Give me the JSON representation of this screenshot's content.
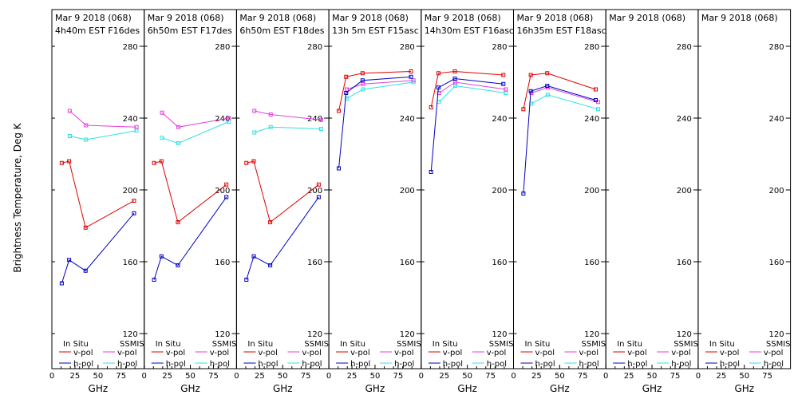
{
  "ylabel": "Brightness Temperature, Deg K",
  "xlabel": "GHz",
  "legend": {
    "insitu_title": "In Situ",
    "ssmis_title": "SSMIS",
    "vpol": "v-pol",
    "hpol": "h-pol"
  },
  "colors": {
    "insitu_v": "#e00000",
    "insitu_h": "#0000c0",
    "ssmis_v": "#e040e0",
    "ssmis_h": "#30e0e0"
  },
  "chart_data": {
    "type": "line",
    "xlim": [
      0,
      100
    ],
    "ylim": [
      110,
      290
    ],
    "yticks": [
      120,
      160,
      200,
      240,
      280
    ],
    "xticks": [
      0,
      25,
      50,
      75
    ],
    "panels": [
      {
        "title1": "Mar 9 2018 (068)",
        "title2": "4h40m EST F16des",
        "insitu_v": [
          [
            10.7,
            215
          ],
          [
            18.7,
            216
          ],
          [
            36.5,
            179
          ],
          [
            89,
            194
          ]
        ],
        "insitu_h": [
          [
            10.7,
            148
          ],
          [
            18.7,
            161
          ],
          [
            36.5,
            155
          ],
          [
            89,
            187
          ]
        ],
        "ssmis_v": [
          [
            19.35,
            244
          ],
          [
            37,
            236
          ],
          [
            91.655,
            235
          ]
        ],
        "ssmis_h": [
          [
            19.35,
            230
          ],
          [
            37,
            228
          ],
          [
            91.655,
            233
          ]
        ]
      },
      {
        "title1": "Mar 9 2018 (068)",
        "title2": "6h50m EST F17des",
        "insitu_v": [
          [
            10.7,
            215
          ],
          [
            18.7,
            216
          ],
          [
            36.5,
            182
          ],
          [
            89,
            203
          ]
        ],
        "insitu_h": [
          [
            10.7,
            150
          ],
          [
            18.7,
            163
          ],
          [
            36.5,
            158
          ],
          [
            89,
            196
          ]
        ],
        "ssmis_v": [
          [
            19.35,
            243
          ],
          [
            37,
            235
          ],
          [
            91.655,
            240
          ]
        ],
        "ssmis_h": [
          [
            19.35,
            229
          ],
          [
            37,
            226
          ],
          [
            91.655,
            238
          ]
        ]
      },
      {
        "title1": "Mar 9 2018 (068)",
        "title2": "6h50m EST F18des",
        "insitu_v": [
          [
            10.7,
            215
          ],
          [
            18.7,
            216
          ],
          [
            36.5,
            182
          ],
          [
            89,
            203
          ]
        ],
        "insitu_h": [
          [
            10.7,
            150
          ],
          [
            18.7,
            163
          ],
          [
            36.5,
            158
          ],
          [
            89,
            196
          ]
        ],
        "ssmis_v": [
          [
            19.35,
            244
          ],
          [
            37,
            242
          ],
          [
            91.655,
            239
          ]
        ],
        "ssmis_h": [
          [
            19.35,
            232
          ],
          [
            37,
            235
          ],
          [
            91.655,
            234
          ]
        ]
      },
      {
        "title1": "Mar 9 2018 (068)",
        "title2": "13h 5m EST F15asc",
        "insitu_v": [
          [
            10.7,
            244
          ],
          [
            18.7,
            263
          ],
          [
            36.5,
            265
          ],
          [
            89,
            266
          ]
        ],
        "insitu_h": [
          [
            10.7,
            212
          ],
          [
            18.7,
            254
          ],
          [
            36.5,
            261
          ],
          [
            89,
            263
          ]
        ],
        "ssmis_v": [
          [
            19.35,
            256
          ],
          [
            37,
            259
          ],
          [
            91.655,
            261
          ]
        ],
        "ssmis_h": [
          [
            19.35,
            251
          ],
          [
            37,
            256
          ],
          [
            91.655,
            260
          ]
        ]
      },
      {
        "title1": "Mar 9 2018 (068)",
        "title2": "14h30m EST F16asc",
        "insitu_v": [
          [
            10.7,
            246
          ],
          [
            18.7,
            265
          ],
          [
            36.5,
            266
          ],
          [
            89,
            264
          ]
        ],
        "insitu_h": [
          [
            10.7,
            210
          ],
          [
            18.7,
            257
          ],
          [
            36.5,
            262
          ],
          [
            89,
            259
          ]
        ],
        "ssmis_v": [
          [
            19.35,
            254
          ],
          [
            37,
            260
          ],
          [
            91.655,
            256
          ]
        ],
        "ssmis_h": [
          [
            19.35,
            249
          ],
          [
            37,
            258
          ],
          [
            91.655,
            254
          ]
        ]
      },
      {
        "title1": "Mar 9 2018 (068)",
        "title2": "16h35m EST F18asc",
        "insitu_v": [
          [
            10.7,
            245
          ],
          [
            18.7,
            264
          ],
          [
            36.5,
            265
          ],
          [
            89,
            256
          ]
        ],
        "insitu_h": [
          [
            10.7,
            198
          ],
          [
            18.7,
            255
          ],
          [
            36.5,
            258
          ],
          [
            89,
            250
          ]
        ],
        "ssmis_v": [
          [
            19.35,
            254
          ],
          [
            37,
            257
          ],
          [
            91.655,
            249
          ]
        ],
        "ssmis_h": [
          [
            19.35,
            248
          ],
          [
            37,
            253
          ],
          [
            91.655,
            245
          ]
        ]
      },
      {
        "title1": "Mar 9 2018 (068)",
        "title2": "",
        "insitu_v": [],
        "insitu_h": [],
        "ssmis_v": [],
        "ssmis_h": []
      },
      {
        "title1": "Mar 9 2018 (068)",
        "title2": "",
        "insitu_v": [],
        "insitu_h": [],
        "ssmis_v": [],
        "ssmis_h": []
      }
    ]
  }
}
